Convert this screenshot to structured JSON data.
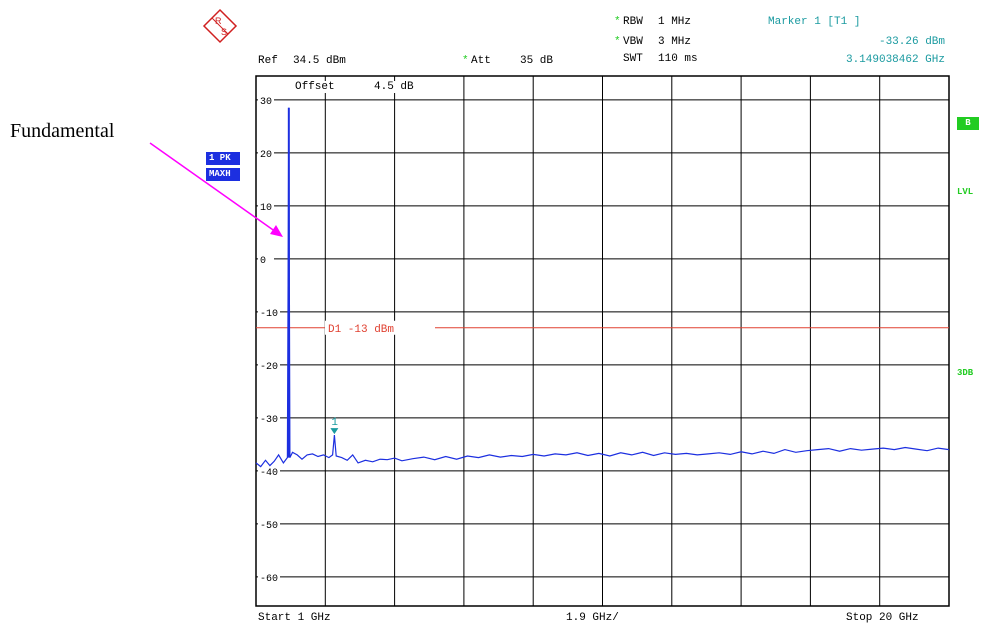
{
  "header": {
    "rbw_label": "RBW",
    "rbw_value": "1 MHz",
    "vbw_label": "VBW",
    "vbw_value": "3 MHz",
    "swt_label": "SWT",
    "swt_value": "110 ms",
    "ref_label": "Ref",
    "ref_value": "34.5 dBm",
    "att_label": "Att",
    "att_value": "35 dB",
    "star": "*",
    "marker_title": "Marker 1 [T1 ]",
    "marker_level": "-33.26 dBm",
    "marker_freq": "3.149038462 GHz",
    "logo_text": "RS"
  },
  "plot": {
    "offset_label": "Offset",
    "offset_value": "4.5 dB",
    "trace_badge_1": "1 PK",
    "trace_badge_2": "MAXH",
    "side_badge_b": "B",
    "side_lvl": "LVL",
    "side_3db": "3DB",
    "start_label": "Start 1 GHz",
    "span_label": "1.9 GHz/",
    "stop_label": "Stop 20 GHz"
  },
  "annotation": {
    "text": "Fundamental",
    "arrow_color": "#ff00ff"
  },
  "colors": {
    "trace": "#1c2fe0",
    "display_line": "#e04030",
    "marker": "#1a9aa0",
    "grid": "#000000"
  },
  "chart_data": {
    "type": "line",
    "title": "",
    "xlabel": "",
    "ylabel": "",
    "x_unit": "GHz",
    "y_unit": "dBm",
    "xlim": [
      1,
      20
    ],
    "ylim": [
      -65.5,
      34.5
    ],
    "y_ticks": [
      30,
      20,
      10,
      0,
      -10,
      -20,
      -30,
      -40,
      -50,
      -60
    ],
    "grid": true,
    "display_line": {
      "label": "D1 -13 dBm",
      "value": -13
    },
    "marker": {
      "label": "1",
      "x": 3.149038462,
      "y": -33.26
    },
    "fundamental": {
      "x": 1.9,
      "y": 28.5
    },
    "series": [
      {
        "x": [
          1.0,
          1.13,
          1.26,
          1.38,
          1.5,
          1.62,
          1.75,
          1.86,
          1.9,
          1.93,
          2.0,
          2.13,
          2.26,
          2.4,
          2.55,
          2.7,
          2.85,
          3.0,
          3.1,
          3.149,
          3.2,
          3.35,
          3.5,
          3.65,
          3.8,
          4.0,
          4.2,
          4.4,
          4.6,
          4.8,
          5.0,
          5.3,
          5.6,
          5.9,
          6.2,
          6.5,
          6.8,
          7.1,
          7.4,
          7.7,
          8.0,
          8.3,
          8.6,
          8.9,
          9.2,
          9.5,
          9.8,
          10.1,
          10.4,
          10.7,
          11.0,
          11.3,
          11.6,
          11.9,
          12.2,
          12.5,
          12.8,
          13.1,
          13.4,
          13.7,
          14.0,
          14.3,
          14.6,
          14.9,
          15.2,
          15.5,
          15.8,
          16.1,
          16.4,
          16.7,
          17.0,
          17.3,
          17.6,
          17.9,
          18.2,
          18.5,
          18.8,
          19.1,
          19.4,
          19.7,
          20.0
        ],
        "y": [
          -38.5,
          -39.2,
          -38.0,
          -39.0,
          -38.2,
          -37.0,
          -38.5,
          -37.5,
          28.5,
          -37.5,
          -36.5,
          -37.0,
          -37.8,
          -37.0,
          -36.8,
          -37.3,
          -37.0,
          -37.5,
          -37.0,
          -33.26,
          -37.2,
          -37.5,
          -38.0,
          -37.0,
          -38.5,
          -38.0,
          -38.3,
          -37.8,
          -37.9,
          -37.6,
          -38.1,
          -37.7,
          -37.4,
          -37.9,
          -37.3,
          -37.8,
          -37.2,
          -37.5,
          -37.0,
          -37.4,
          -37.1,
          -37.3,
          -36.9,
          -37.2,
          -36.8,
          -37.0,
          -36.6,
          -37.1,
          -36.7,
          -37.2,
          -36.6,
          -37.0,
          -36.5,
          -37.1,
          -36.6,
          -36.9,
          -36.7,
          -37.0,
          -36.8,
          -36.6,
          -36.9,
          -36.4,
          -36.8,
          -36.3,
          -36.7,
          -36.0,
          -36.5,
          -36.2,
          -36.0,
          -35.8,
          -36.3,
          -35.8,
          -36.1,
          -35.9,
          -35.7,
          -36.0,
          -35.6,
          -35.9,
          -36.2,
          -35.7,
          -36.0
        ]
      }
    ]
  }
}
